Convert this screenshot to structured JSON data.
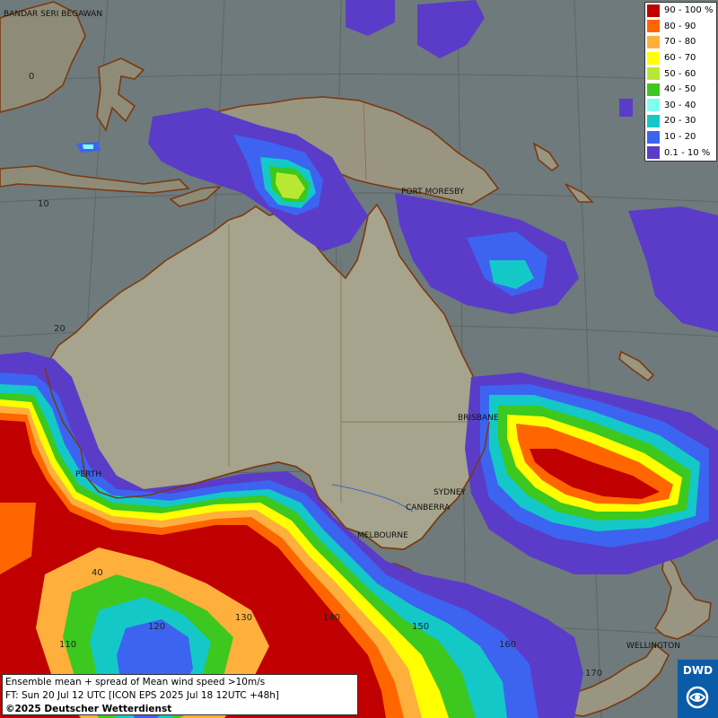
{
  "cities": [
    "BANDAR SERI BEGAWAN",
    "PORT MORESBY",
    "BRISBANE",
    "PERTH",
    "SYDNEY",
    "CANBERRA",
    "MELBOURNE",
    "WELLINGTON"
  ],
  "latitude_labels": [
    "0",
    "10",
    "20"
  ],
  "longitude_labels": [
    "40",
    "110",
    "120",
    "130",
    "140",
    "150",
    "160",
    "170"
  ],
  "legend": {
    "items": [
      {
        "label": "90 - 100 %",
        "color": "#c00000"
      },
      {
        "label": "80 - 90",
        "color": "#ff6600"
      },
      {
        "label": "70 - 80",
        "color": "#ffb03c"
      },
      {
        "label": "60 - 70",
        "color": "#ffff00"
      },
      {
        "label": "50 - 60",
        "color": "#b8e832"
      },
      {
        "label": "40 - 50",
        "color": "#3cc81e"
      },
      {
        "label": "30 - 40",
        "color": "#7ffff0"
      },
      {
        "label": "20 - 30",
        "color": "#14c8c8"
      },
      {
        "label": "10 - 20",
        "color": "#3c64f0"
      },
      {
        "label": "0.1 - 10 %",
        "color": "#5a3cc8"
      }
    ]
  },
  "info": {
    "line1": "Ensemble mean + spread of Mean wind speed >10m/s",
    "line2": "FT: Sun 20 Jul 12 UTC [ICON EPS 2025 Jul 18 12UTC +48h]",
    "copyright": "©2025 Deutscher Wetterdienst"
  },
  "logo": {
    "text": "DWD"
  }
}
